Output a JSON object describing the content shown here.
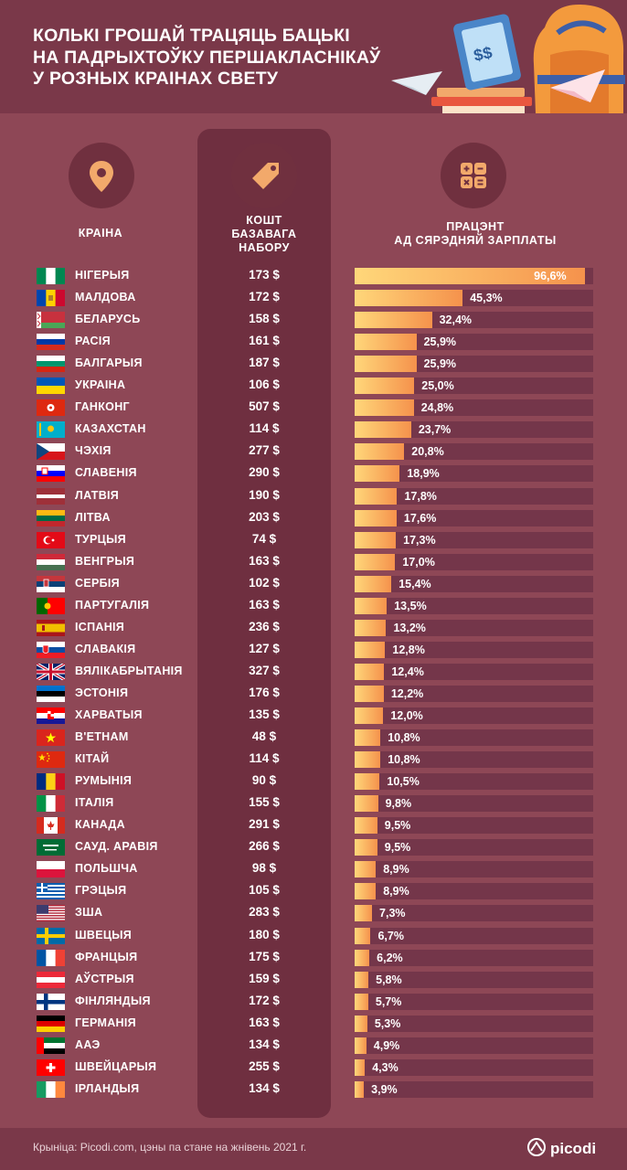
{
  "title_lines": [
    "КОЛЬКІ ГРОШАЙ ТРАЦЯЦЬ БАЦЬКІ",
    "НА ПАДРЫХТОЎКУ ПЕРШАКЛАСНІКАЎ",
    "У РОЗНЫХ КРАІНАХ СВЕТУ"
  ],
  "illustration_text": "$$",
  "headers": {
    "country": "КРАІНА",
    "cost": "КОШТ\nБАЗАВАГА\nНАБОРУ",
    "percent": "ПРАЦЭНТ\nАД СЯРЭДНЯЙ ЗАРПЛАТЫ"
  },
  "icons": {
    "country": "location-pin-icon",
    "cost": "price-tag-icon",
    "percent": "calculator-icon"
  },
  "colors": {
    "background": "#8e4756",
    "header": "#7a3849",
    "column": "#6f2f40",
    "bar_start": "#ffd77a",
    "bar_end": "#f5924c",
    "accent": "#f2a96b"
  },
  "chart_data": {
    "type": "bar",
    "orientation": "horizontal",
    "xlim": [
      0,
      100
    ],
    "categories": [
      "НІГЕРЫЯ",
      "МАЛДОВА",
      "БЕЛАРУСЬ",
      "РАСІЯ",
      "БАЛГАРЫЯ",
      "УКРАІНА",
      "ГАНКОНГ",
      "КАЗАХСТАН",
      "ЧЭХІЯ",
      "СЛАВЕНІЯ",
      "ЛАТВІЯ",
      "ЛІТВА",
      "ТУРЦЫЯ",
      "ВЕНГРЫЯ",
      "СЕРБІЯ",
      "ПАРТУГАЛІЯ",
      "ІСПАНІЯ",
      "СЛАВАКІЯ",
      "ВЯЛІКАБРЫТАНІЯ",
      "ЭСТОНІЯ",
      "ХАРВАТЫЯ",
      "В'ЕТНАМ",
      "КІТАЙ",
      "РУМЫНІЯ",
      "ІТАЛІЯ",
      "КАНАДА",
      "САУД. АРАВІЯ",
      "ПОЛЬШЧА",
      "ГРЭЦЫЯ",
      "ЗША",
      "ШВЕЦЫЯ",
      "ФРАНЦЫЯ",
      "АЎСТРЫЯ",
      "ФІНЛЯНДЫЯ",
      "ГЕРМАНІЯ",
      "ААЭ",
      "ШВЕЙЦАРЫЯ",
      "ІРЛАНДЫЯ"
    ],
    "costs": [
      "173 $",
      "172 $",
      "158 $",
      "161 $",
      "187 $",
      "106 $",
      "507 $",
      "114 $",
      "277 $",
      "290 $",
      "190 $",
      "203 $",
      "74 $",
      "163 $",
      "102 $",
      "163 $",
      "236 $",
      "127 $",
      "327 $",
      "176 $",
      "135 $",
      "48 $",
      "114 $",
      "90 $",
      "155 $",
      "291 $",
      "266 $",
      "98 $",
      "105 $",
      "283 $",
      "180 $",
      "175 $",
      "159 $",
      "172 $",
      "163 $",
      "134 $",
      "255 $",
      "134 $"
    ],
    "values": [
      96.6,
      45.3,
      32.4,
      25.9,
      25.9,
      25.0,
      24.8,
      23.7,
      20.8,
      18.9,
      17.8,
      17.6,
      17.3,
      17.0,
      15.4,
      13.5,
      13.2,
      12.8,
      12.4,
      12.2,
      12.0,
      10.8,
      10.8,
      10.5,
      9.8,
      9.5,
      9.5,
      8.9,
      8.9,
      7.3,
      6.7,
      6.2,
      5.8,
      5.7,
      5.3,
      4.9,
      4.3,
      3.9
    ],
    "value_labels": [
      "96,6%",
      "45,3%",
      "32,4%",
      "25,9%",
      "25,9%",
      "25,0%",
      "24,8%",
      "23,7%",
      "20,8%",
      "18,9%",
      "17,8%",
      "17,6%",
      "17,3%",
      "17,0%",
      "15,4%",
      "13,5%",
      "13,2%",
      "12,8%",
      "12,4%",
      "12,2%",
      "12,0%",
      "10,8%",
      "10,8%",
      "10,5%",
      "9,8%",
      "9,5%",
      "9,5%",
      "8,9%",
      "8,9%",
      "7,3%",
      "6,7%",
      "6,2%",
      "5,8%",
      "5,7%",
      "5,3%",
      "4,9%",
      "4,3%",
      "3,9%"
    ]
  },
  "footer": {
    "source": "Крыніца: Picodi.com, цэны па стане на жнівень 2021 г.",
    "logo": "picodi"
  }
}
